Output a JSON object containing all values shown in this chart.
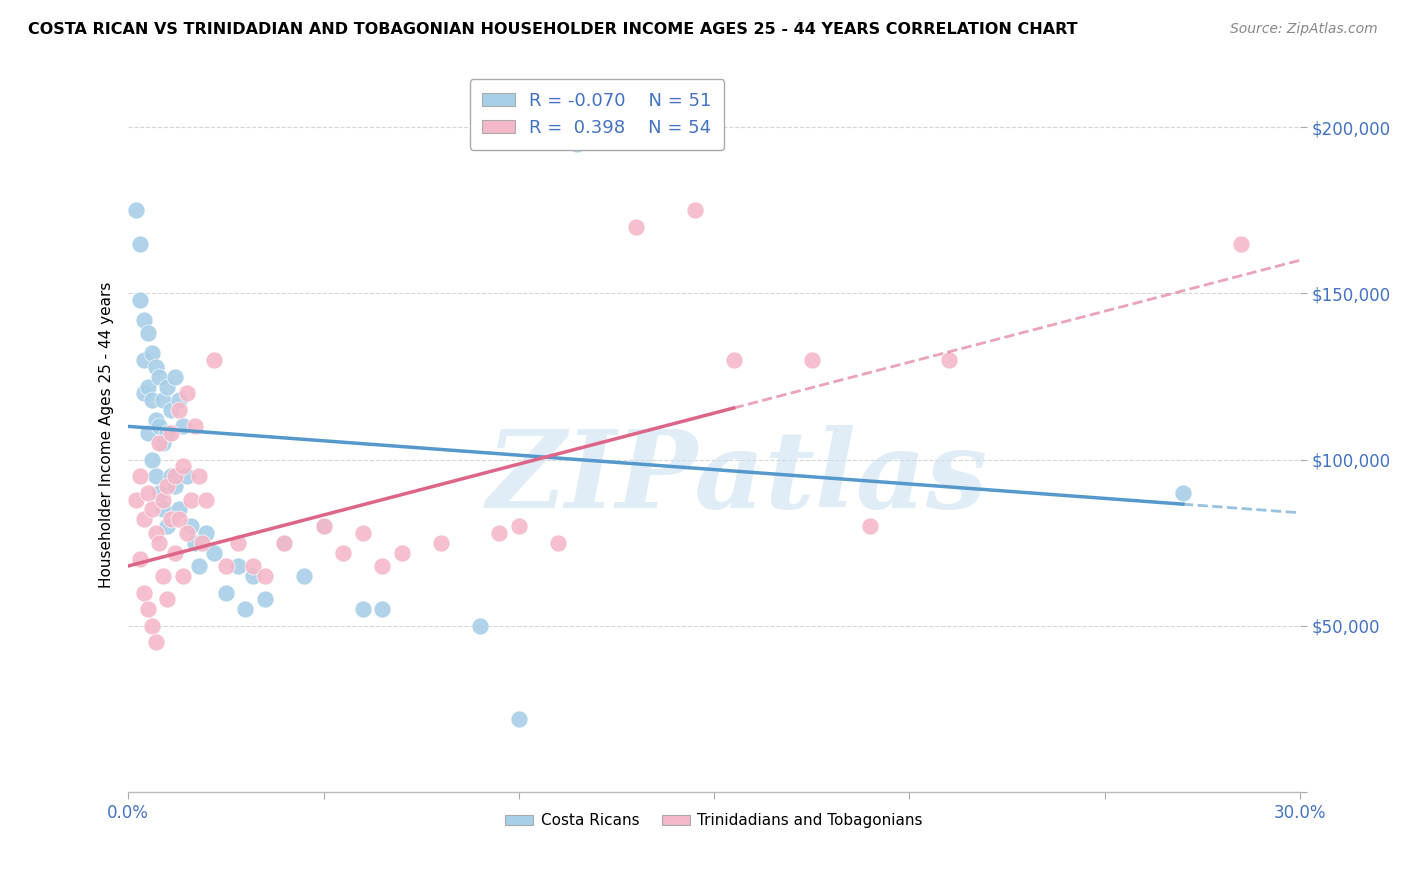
{
  "title": "COSTA RICAN VS TRINIDADIAN AND TOBAGONIAN HOUSEHOLDER INCOME AGES 25 - 44 YEARS CORRELATION CHART",
  "source": "Source: ZipAtlas.com",
  "xlabel": "",
  "ylabel": "Householder Income Ages 25 - 44 years",
  "xlim": [
    0.0,
    0.3
  ],
  "ylim": [
    0,
    215000
  ],
  "xticks": [
    0.0,
    0.05,
    0.1,
    0.15,
    0.2,
    0.25,
    0.3
  ],
  "xticklabels": [
    "0.0%",
    "",
    "",
    "",
    "",
    "",
    "30.0%"
  ],
  "yticks": [
    0,
    50000,
    100000,
    150000,
    200000
  ],
  "yticklabels": [
    "",
    "$50,000",
    "$100,000",
    "$150,000",
    "$200,000"
  ],
  "blue_color": "#a8cfe8",
  "pink_color": "#f4b8c8",
  "blue_line_color": "#5599cc",
  "pink_line_color": "#dd6688",
  "R_blue": -0.07,
  "N_blue": 51,
  "R_pink": 0.398,
  "N_pink": 54,
  "legend_label_blue": "Costa Ricans",
  "legend_label_pink": "Trinidadians and Tobagonians",
  "watermark": "ZIPatlas",
  "blue_line_x0": 0.0,
  "blue_line_y0": 110000,
  "blue_line_x1": 0.3,
  "blue_line_y1": 84000,
  "blue_line_solid_end": 0.27,
  "pink_line_x0": 0.0,
  "pink_line_y0": 68000,
  "pink_line_x1": 0.3,
  "pink_line_y1": 160000,
  "pink_line_solid_end": 0.155,
  "blue_scatter_x": [
    0.002,
    0.003,
    0.003,
    0.004,
    0.004,
    0.004,
    0.005,
    0.005,
    0.005,
    0.006,
    0.006,
    0.006,
    0.007,
    0.007,
    0.007,
    0.008,
    0.008,
    0.008,
    0.009,
    0.009,
    0.009,
    0.01,
    0.01,
    0.01,
    0.011,
    0.011,
    0.012,
    0.012,
    0.013,
    0.013,
    0.014,
    0.015,
    0.016,
    0.017,
    0.018,
    0.02,
    0.022,
    0.025,
    0.028,
    0.03,
    0.032,
    0.035,
    0.04,
    0.045,
    0.05,
    0.06,
    0.065,
    0.09,
    0.1,
    0.115,
    0.27
  ],
  "blue_scatter_y": [
    175000,
    165000,
    148000,
    142000,
    130000,
    120000,
    138000,
    122000,
    108000,
    132000,
    118000,
    100000,
    128000,
    112000,
    95000,
    125000,
    110000,
    90000,
    118000,
    105000,
    85000,
    122000,
    108000,
    80000,
    115000,
    95000,
    125000,
    92000,
    118000,
    85000,
    110000,
    95000,
    80000,
    75000,
    68000,
    78000,
    72000,
    60000,
    68000,
    55000,
    65000,
    58000,
    75000,
    65000,
    80000,
    55000,
    55000,
    50000,
    22000,
    195000,
    90000
  ],
  "pink_scatter_x": [
    0.002,
    0.003,
    0.003,
    0.004,
    0.004,
    0.005,
    0.005,
    0.006,
    0.006,
    0.007,
    0.007,
    0.008,
    0.008,
    0.009,
    0.009,
    0.01,
    0.01,
    0.011,
    0.011,
    0.012,
    0.012,
    0.013,
    0.013,
    0.014,
    0.014,
    0.015,
    0.015,
    0.016,
    0.017,
    0.018,
    0.019,
    0.02,
    0.022,
    0.025,
    0.028,
    0.032,
    0.035,
    0.04,
    0.05,
    0.055,
    0.06,
    0.065,
    0.07,
    0.08,
    0.095,
    0.1,
    0.11,
    0.13,
    0.145,
    0.155,
    0.175,
    0.19,
    0.21,
    0.285
  ],
  "pink_scatter_y": [
    88000,
    95000,
    70000,
    82000,
    60000,
    90000,
    55000,
    85000,
    50000,
    78000,
    45000,
    75000,
    105000,
    88000,
    65000,
    92000,
    58000,
    82000,
    108000,
    95000,
    72000,
    115000,
    82000,
    98000,
    65000,
    120000,
    78000,
    88000,
    110000,
    95000,
    75000,
    88000,
    130000,
    68000,
    75000,
    68000,
    65000,
    75000,
    80000,
    72000,
    78000,
    68000,
    72000,
    75000,
    78000,
    80000,
    75000,
    170000,
    175000,
    130000,
    130000,
    80000,
    130000,
    165000
  ]
}
